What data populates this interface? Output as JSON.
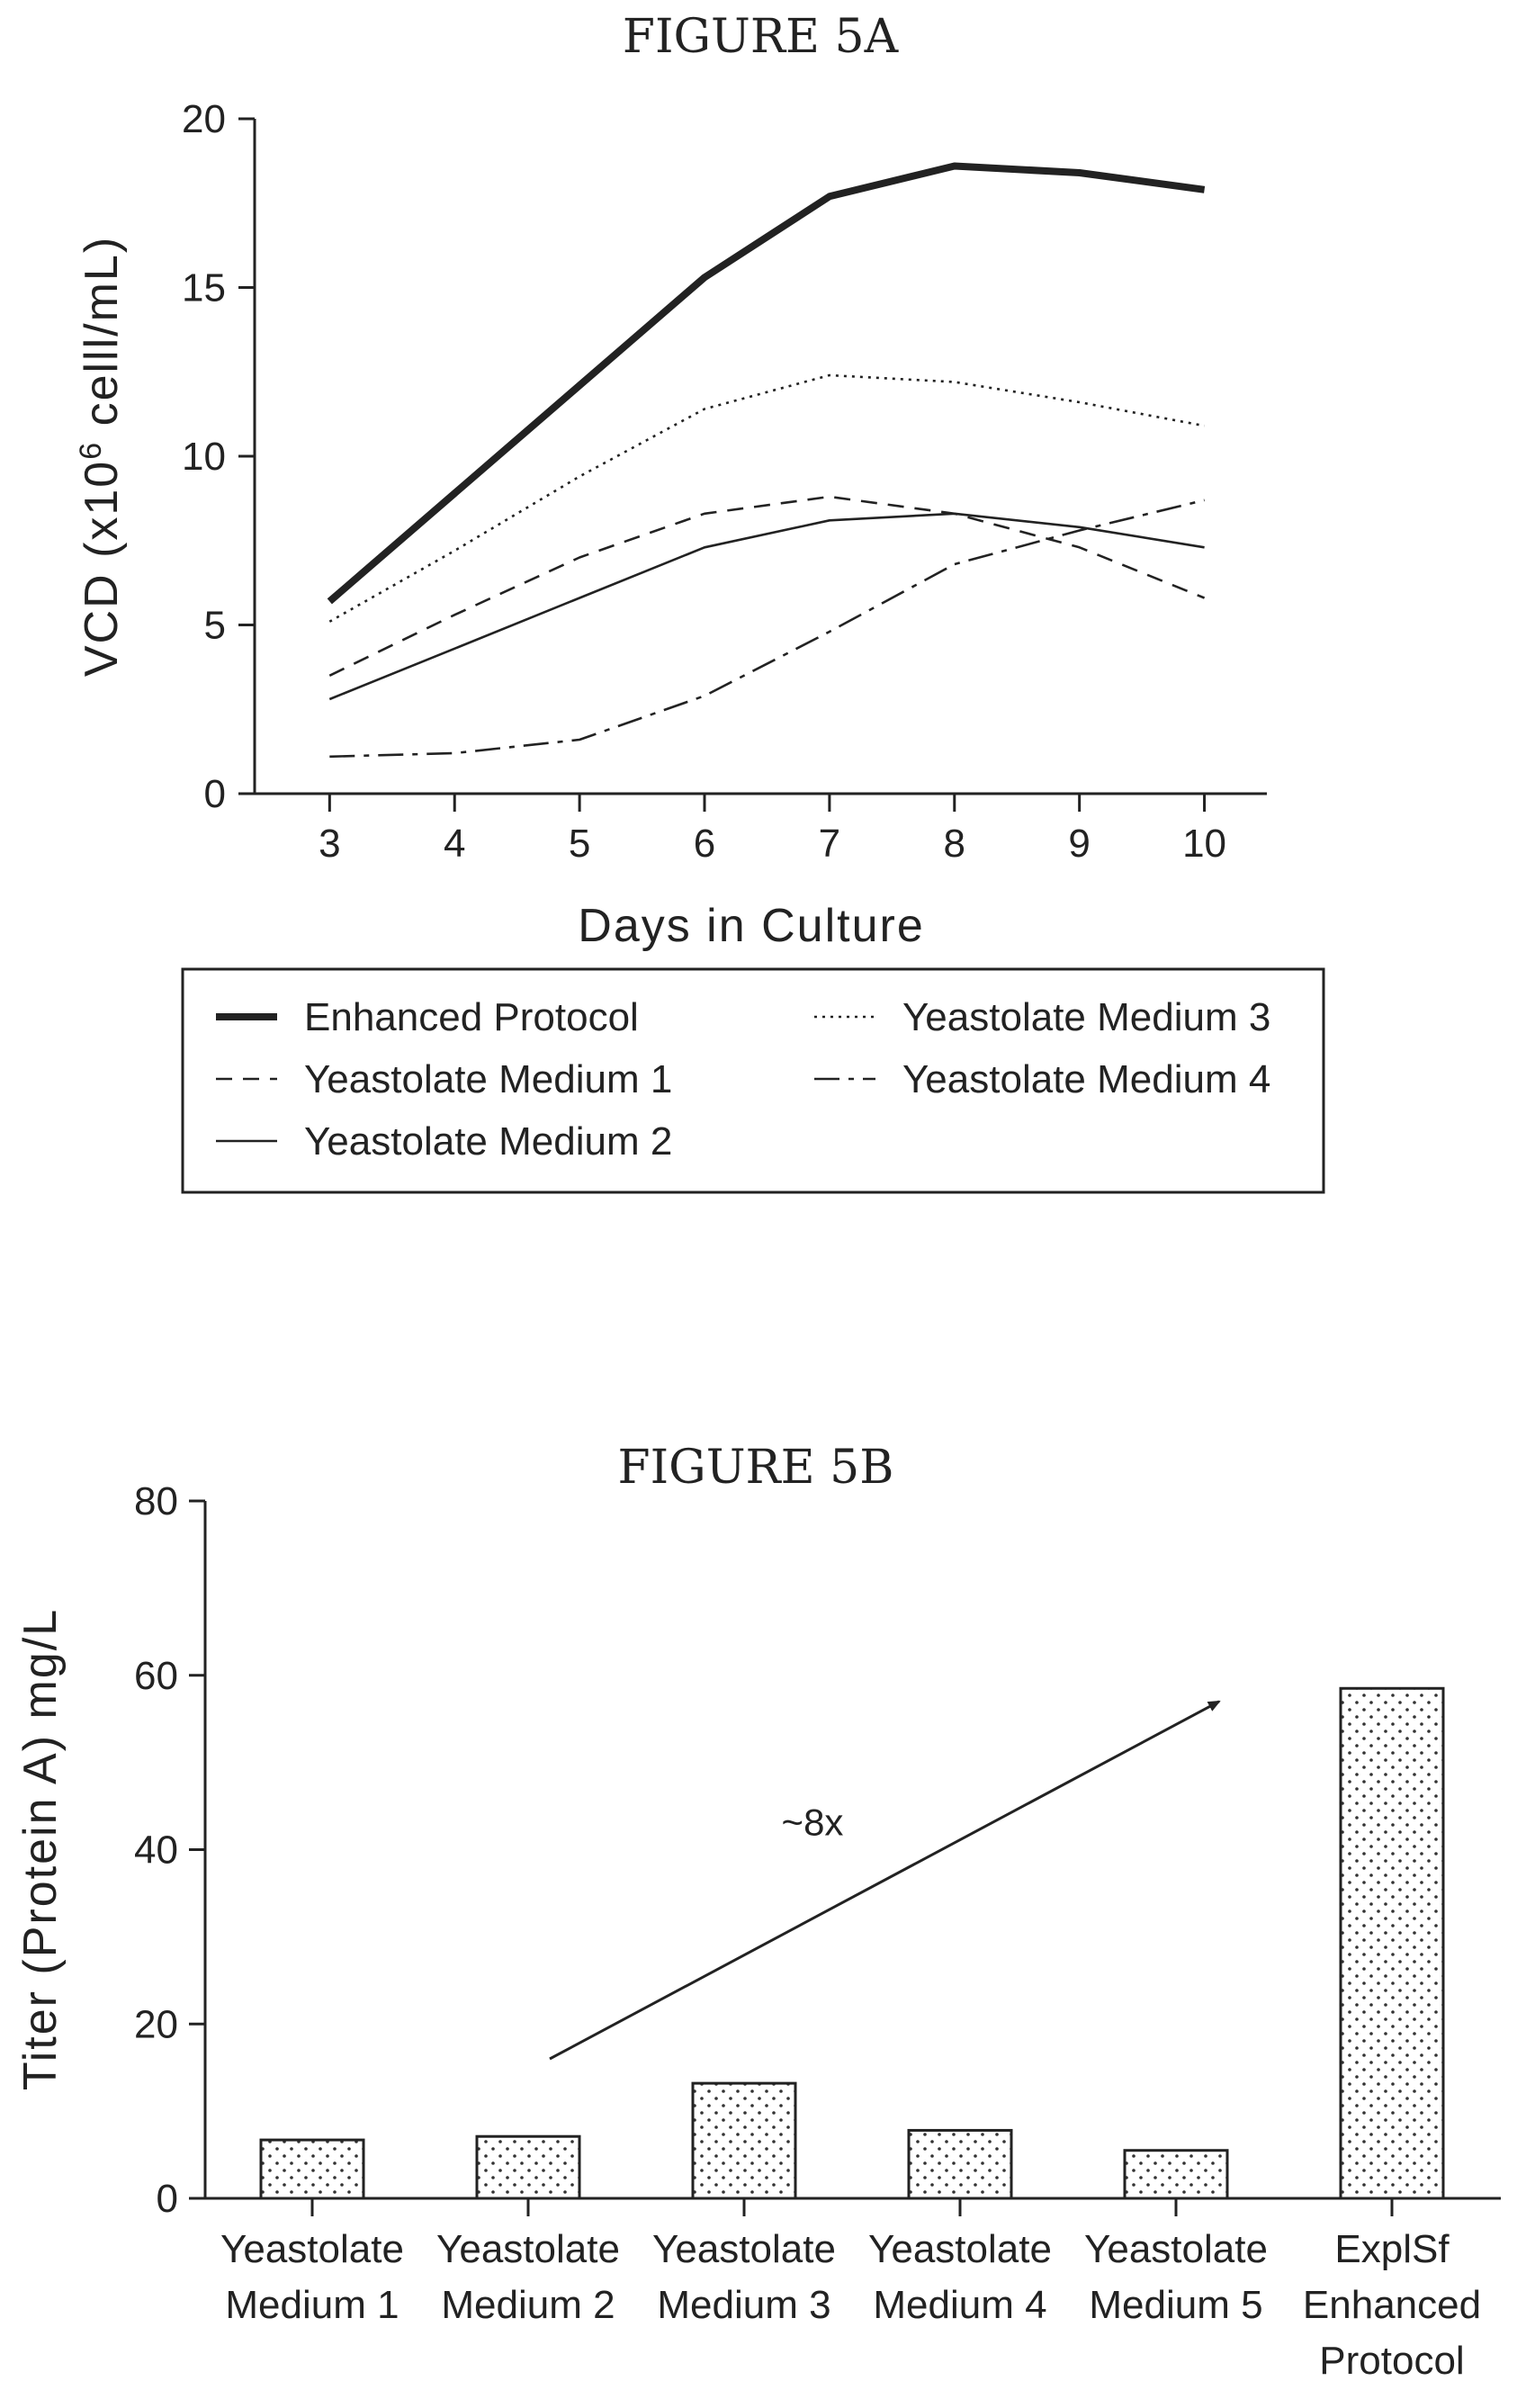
{
  "chart_data": [
    {
      "id": "fig5a",
      "type": "line",
      "title": "FIGURE 5A",
      "xlabel": "Days in Culture",
      "ylabel": "VCD (x10",
      "ylabel_sup": "6",
      "ylabel_rest": " celll/mL)",
      "x": [
        3,
        4,
        5,
        6,
        7,
        8,
        9,
        10
      ],
      "xlim": [
        2.4,
        10.5
      ],
      "ylim": [
        0,
        20
      ],
      "yticks": [
        0,
        5,
        10,
        15,
        20
      ],
      "grid": false,
      "legend_position": "below",
      "series": [
        {
          "name": "Enhanced Protocol",
          "style": "thick",
          "values": [
            5.7,
            8.9,
            12.1,
            15.3,
            17.7,
            18.6,
            18.4,
            17.9
          ]
        },
        {
          "name": "Yeastolate Medium 1",
          "style": "dashed",
          "values": [
            3.5,
            5.3,
            7.0,
            8.3,
            8.8,
            8.3,
            7.3,
            5.8
          ]
        },
        {
          "name": "Yeastolate Medium 2",
          "style": "solid",
          "values": [
            2.8,
            4.3,
            5.8,
            7.3,
            8.1,
            8.3,
            7.9,
            7.3
          ]
        },
        {
          "name": "Yeastolate Medium 3",
          "style": "dotted",
          "values": [
            5.1,
            7.2,
            9.4,
            11.4,
            12.4,
            12.2,
            11.6,
            10.9
          ]
        },
        {
          "name": "Yeastolate Medium 4",
          "style": "dashdot",
          "values": [
            1.1,
            1.2,
            1.6,
            2.9,
            4.8,
            6.8,
            7.8,
            8.7
          ]
        }
      ]
    },
    {
      "id": "fig5b",
      "type": "bar",
      "title": "FIGURE 5B",
      "xlabel": "",
      "ylabel": "Titer (Protein A) mg/L",
      "ylim": [
        0,
        80
      ],
      "yticks": [
        0,
        20,
        40,
        60,
        80
      ],
      "grid": false,
      "categories": [
        [
          "Yeastolate",
          "Medium 1"
        ],
        [
          "Yeastolate",
          "Medium 2"
        ],
        [
          "Yeastolate",
          "Medium 3"
        ],
        [
          "Yeastolate",
          "Medium 4"
        ],
        [
          "Yeastolate",
          "Medium 5"
        ],
        [
          "ExplSf",
          "Enhanced",
          "Protocol"
        ]
      ],
      "values": [
        6.7,
        7.1,
        13.2,
        7.8,
        5.5,
        58.5
      ],
      "fill_pattern": "dotted",
      "annotation": {
        "text": "~8x",
        "arrow_from": [
          1.1,
          16
        ],
        "arrow_to": [
          4.2,
          57
        ]
      }
    }
  ]
}
